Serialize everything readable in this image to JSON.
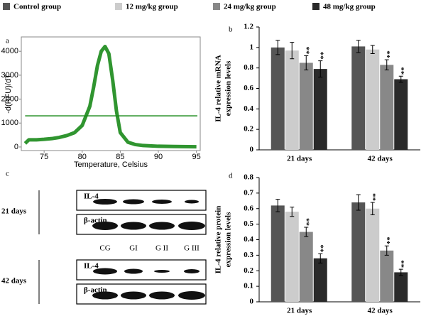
{
  "chart_data": [
    {
      "type": "line",
      "panel": "a",
      "ylabel": "-d(RFU)/dT",
      "xlabel": "Temperature, Celsius",
      "color": "#1a8a1a",
      "x": [
        72.5,
        73,
        74,
        75,
        76,
        77,
        78,
        79,
        80,
        81,
        81.5,
        82,
        82.5,
        83,
        83.5,
        84,
        84.5,
        85,
        86,
        87,
        88,
        90,
        92,
        95
      ],
      "values": [
        150,
        300,
        300,
        320,
        350,
        400,
        480,
        600,
        900,
        1700,
        2500,
        3400,
        4000,
        4200,
        3900,
        2800,
        1500,
        600,
        200,
        100,
        60,
        30,
        20,
        10
      ],
      "threshold": 1300,
      "xlim": [
        72,
        95.5
      ],
      "xticks": [
        75,
        80,
        85,
        90,
        95
      ],
      "ylim": [
        -150,
        4600
      ],
      "yticks": [
        0,
        1000,
        2000,
        3000,
        4000
      ]
    },
    {
      "type": "bar",
      "panel": "b",
      "ylabel": [
        "IL-4 relative mRNA",
        "expression levels"
      ],
      "categories": [
        "21 days",
        "42 days"
      ],
      "ylim": [
        0,
        1.2
      ],
      "yticks": [
        0,
        0.2,
        0.4,
        0.6,
        0.8,
        1,
        1.2
      ],
      "series": [
        {
          "name": "Control group",
          "color": "#555555",
          "values": [
            1.0,
            1.01
          ],
          "errors": [
            0.07,
            0.06
          ],
          "annotations": [
            null,
            null
          ]
        },
        {
          "name": "12 mg/kg group",
          "color": "#cccccc",
          "values": [
            0.97,
            0.98
          ],
          "errors": [
            0.08,
            0.04
          ],
          "annotations": [
            null,
            null
          ]
        },
        {
          "name": "24 mg/kg group",
          "color": "#888888",
          "values": [
            0.85,
            0.83
          ],
          "errors": [
            0.07,
            0.05
          ],
          "annotations": [
            "**",
            "**"
          ]
        },
        {
          "name": "48 mg/kg group",
          "color": "#2a2a2a",
          "values": [
            0.79,
            0.69
          ],
          "errors": [
            0.08,
            0.03
          ],
          "annotations": [
            "**",
            "**"
          ]
        }
      ]
    },
    {
      "type": "bar",
      "panel": "d",
      "ylabel": [
        "IL-4 relative protein",
        "expression levels"
      ],
      "categories": [
        "21 days",
        "42 days"
      ],
      "ylim": [
        0,
        0.8
      ],
      "yticks": [
        0,
        0.1,
        0.2,
        0.3,
        0.4,
        0.5,
        0.6,
        0.7,
        0.8
      ],
      "series": [
        {
          "name": "Control group",
          "color": "#555555",
          "values": [
            0.62,
            0.64
          ],
          "errors": [
            0.04,
            0.05
          ],
          "annotations": [
            null,
            null
          ]
        },
        {
          "name": "12 mg/kg group",
          "color": "#cccccc",
          "values": [
            0.58,
            0.6
          ],
          "errors": [
            0.03,
            0.04
          ],
          "annotations": [
            null,
            "**"
          ]
        },
        {
          "name": "24 mg/kg group",
          "color": "#888888",
          "values": [
            0.45,
            0.33
          ],
          "errors": [
            0.03,
            0.03
          ],
          "annotations": [
            "**",
            "**"
          ]
        },
        {
          "name": "48 mg/kg group",
          "color": "#2a2a2a",
          "values": [
            0.28,
            0.19
          ],
          "errors": [
            0.03,
            0.02
          ],
          "annotations": [
            "**",
            "**"
          ]
        }
      ]
    }
  ],
  "blot": {
    "panel": "c",
    "lanes": [
      "CG",
      "GI",
      "G II",
      "G III"
    ],
    "groups": [
      {
        "label": "21 days",
        "rows": [
          "IL-4",
          "β-actin"
        ]
      },
      {
        "label": "42 days",
        "rows": [
          "IL-4",
          "β-actin"
        ]
      }
    ]
  }
}
